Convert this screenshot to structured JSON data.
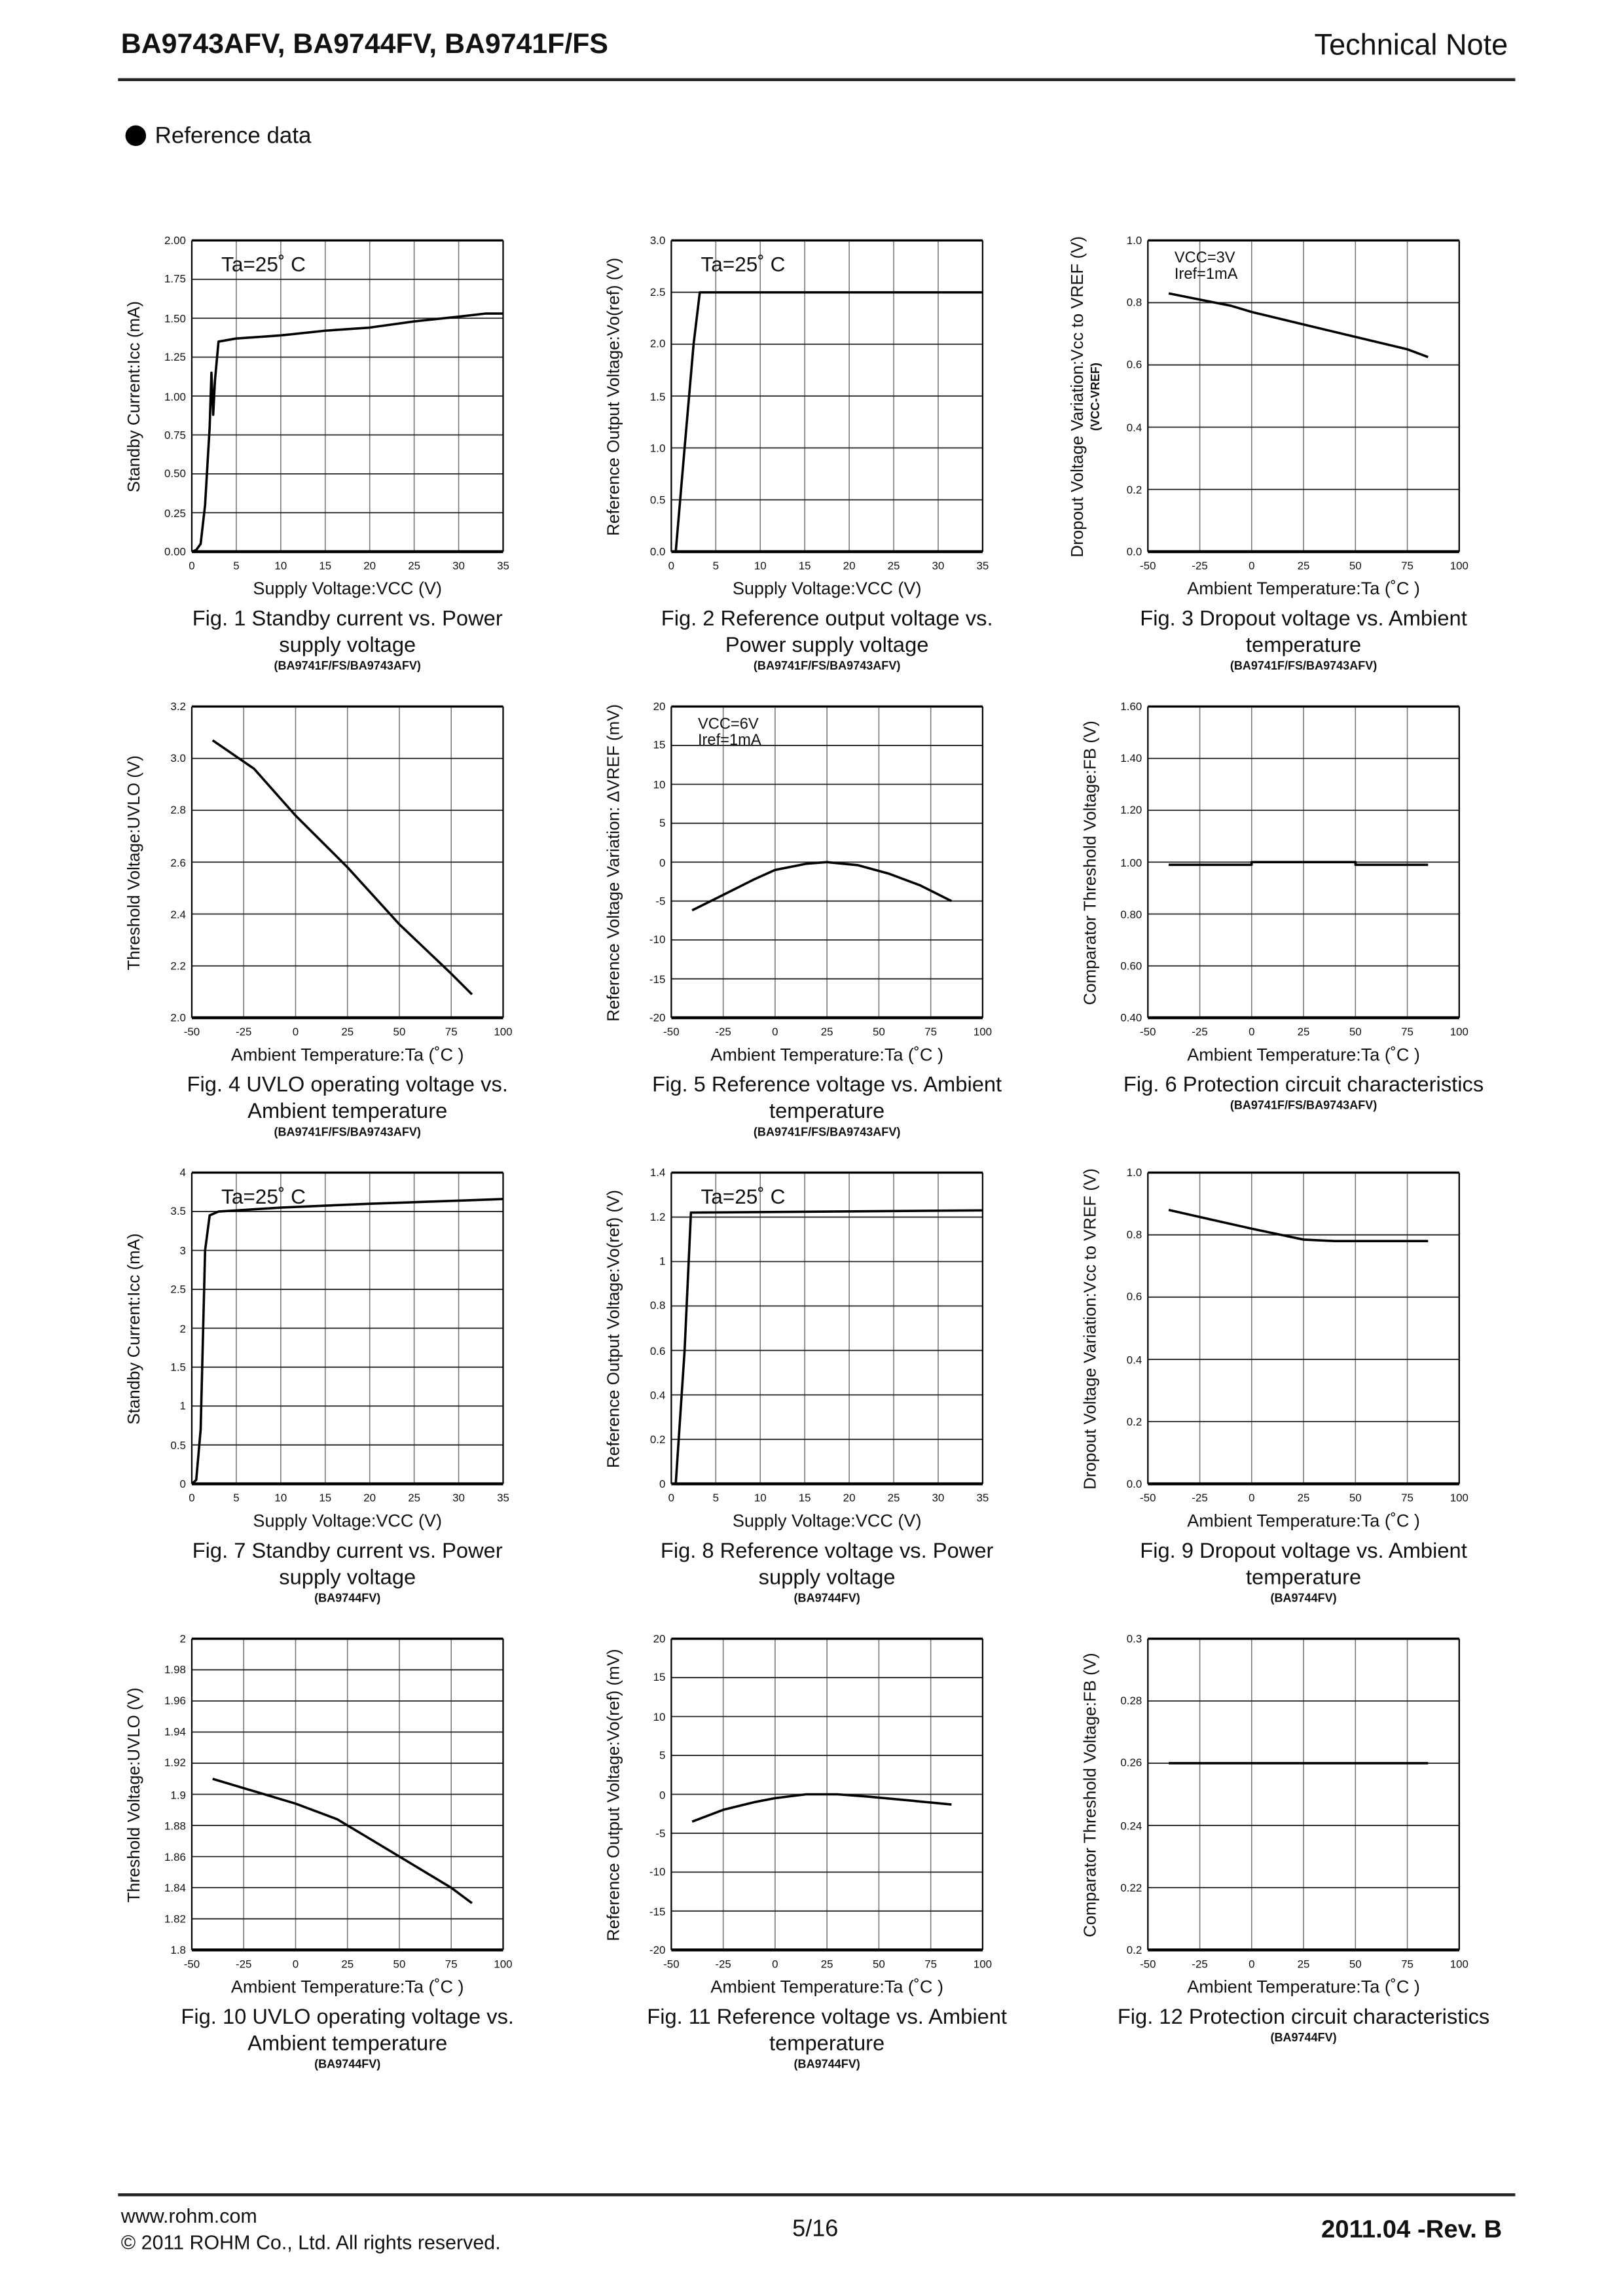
{
  "header": {
    "title": "BA9743AFV, BA9744FV, BA9741F/FS",
    "doc_type": "Technical Note"
  },
  "section": {
    "title": "Reference data"
  },
  "footer": {
    "url": "www.rohm.com",
    "copyright": "© 2011  ROHM Co., Ltd. All rights reserved.",
    "page": "5/16",
    "revision": "2011.04 -Rev. B"
  },
  "chart_data": [
    {
      "type": "line",
      "caption": [
        "Fig. 1  Standby current vs. Power",
        "supply voltage"
      ],
      "model": "(BA9741F/FS/BA9743AFV)",
      "xlabel": "Supply Voltage:VCC (V)",
      "ylabel": "Standby Current:Icc (mA)",
      "xlim": [
        0,
        35
      ],
      "ylim": [
        0,
        2
      ],
      "x_ticks": [
        "0",
        "5",
        "10",
        "15",
        "20",
        "25",
        "30",
        "35"
      ],
      "y_ticks": [
        "0.00",
        "0.25",
        "0.50",
        "0.75",
        "1.00",
        "1.25",
        "1.50",
        "1.75",
        "2.00"
      ],
      "annotation": [
        "Ta=25˚ C"
      ],
      "grid": true,
      "series": [
        {
          "name": "Icc",
          "x": [
            0,
            0.5,
            1,
            1.5,
            2,
            2.2,
            2.4,
            2.6,
            3,
            5,
            10,
            15,
            20,
            25,
            30,
            33,
            35
          ],
          "y": [
            0,
            0.01,
            0.05,
            0.3,
            0.8,
            1.15,
            0.88,
            1.1,
            1.35,
            1.37,
            1.39,
            1.42,
            1.44,
            1.48,
            1.51,
            1.53,
            1.53
          ]
        }
      ]
    },
    {
      "type": "line",
      "caption": [
        "Fig. 2  Reference output voltage vs.",
        "Power supply voltage"
      ],
      "model": "(BA9741F/FS/BA9743AFV)",
      "xlabel": "Supply Voltage:VCC (V)",
      "ylabel": "Reference Output Voltage:Vo(ref) (V)",
      "xlim": [
        0,
        35
      ],
      "ylim": [
        0,
        3
      ],
      "x_ticks": [
        "0",
        "5",
        "10",
        "15",
        "20",
        "25",
        "30",
        "35"
      ],
      "y_ticks": [
        "0.0",
        "0.5",
        "1.0",
        "1.5",
        "2.0",
        "2.5",
        "3.0"
      ],
      "annotation": [
        "Ta=25˚ C"
      ],
      "grid": true,
      "series": [
        {
          "name": "Vo(ref)",
          "x": [
            0.5,
            1.5,
            2.5,
            3.2,
            35
          ],
          "y": [
            0,
            1.0,
            2.0,
            2.5,
            2.5
          ]
        }
      ]
    },
    {
      "type": "line",
      "caption": [
        "Fig. 3  Dropout voltage vs. Ambient",
        "temperature"
      ],
      "model": "(BA9741F/FS/BA9743AFV)",
      "xlabel": "Ambient Temperature:Ta (˚C )",
      "ylabel": "Dropout Voltage Variation:Vcc to VREF (V)",
      "ylabel2": "(VCC-VREF)",
      "xlim": [
        -50,
        100
      ],
      "ylim": [
        0,
        1
      ],
      "x_ticks": [
        "-50",
        "-25",
        "0",
        "25",
        "50",
        "75",
        "100"
      ],
      "y_ticks": [
        "0.0",
        "0.2",
        "0.4",
        "0.6",
        "0.8",
        "1.0"
      ],
      "annotation": [
        "VCC=3V",
        "Iref=1mA"
      ],
      "grid": true,
      "series": [
        {
          "name": "VCC-VREF",
          "x": [
            -40,
            -25,
            -10,
            0,
            25,
            50,
            75,
            85
          ],
          "y": [
            0.83,
            0.81,
            0.79,
            0.77,
            0.73,
            0.69,
            0.65,
            0.625
          ]
        }
      ]
    },
    {
      "type": "line",
      "caption": [
        "Fig. 4  UVLO operating voltage vs.",
        "Ambient temperature"
      ],
      "model": "(BA9741F/FS/BA9743AFV)",
      "xlabel": "Ambient Temperature:Ta (˚C )",
      "ylabel": "Threshold Voltage:UVLO (V)",
      "xlim": [
        -50,
        100
      ],
      "ylim": [
        2.0,
        3.2
      ],
      "x_ticks": [
        "-50",
        "-25",
        "0",
        "25",
        "50",
        "75",
        "100"
      ],
      "y_ticks": [
        "2.0",
        "2.2",
        "2.4",
        "2.6",
        "2.8",
        "3.0",
        "3.2"
      ],
      "annotation": [],
      "grid": true,
      "series": [
        {
          "name": "UVLO",
          "x": [
            -40,
            -20,
            0,
            25,
            50,
            75,
            85
          ],
          "y": [
            3.07,
            2.96,
            2.78,
            2.58,
            2.36,
            2.17,
            2.09
          ]
        }
      ]
    },
    {
      "type": "line",
      "caption": [
        "Fig. 5  Reference voltage vs. Ambient",
        "temperature"
      ],
      "model": "(BA9741F/FS/BA9743AFV)",
      "xlabel": "Ambient Temperature:Ta (˚C )",
      "ylabel": "Reference Voltage Variation: ΔVREF (mV)",
      "xlim": [
        -50,
        100
      ],
      "ylim": [
        -20,
        20
      ],
      "x_ticks": [
        "-50",
        "-25",
        "0",
        "25",
        "50",
        "75",
        "100"
      ],
      "y_ticks": [
        "-20",
        "-15",
        "-10",
        "-5",
        "0",
        "5",
        "10",
        "15",
        "20"
      ],
      "annotation": [
        "VCC=6V",
        "Iref=1mA"
      ],
      "grid": true,
      "series": [
        {
          "name": "ΔVREF",
          "x": [
            -40,
            -25,
            -10,
            0,
            15,
            25,
            40,
            55,
            70,
            85
          ],
          "y": [
            -6.2,
            -4.2,
            -2.2,
            -1,
            -0.2,
            0,
            -0.4,
            -1.5,
            -3,
            -5
          ]
        }
      ]
    },
    {
      "type": "line",
      "caption": [
        "Fig. 6  Protection circuit characteristics"
      ],
      "model": "(BA9741F/FS/BA9743AFV)",
      "xlabel": "Ambient Temperature:Ta (˚C )",
      "ylabel": "Comparator Threshold Voltage:FB (V)",
      "xlim": [
        -50,
        100
      ],
      "ylim": [
        0.4,
        1.6
      ],
      "x_ticks": [
        "-50",
        "-25",
        "0",
        "25",
        "50",
        "75",
        "100"
      ],
      "y_ticks": [
        "0.40",
        "0.60",
        "0.80",
        "1.00",
        "1.20",
        "1.40",
        "1.60"
      ],
      "annotation": [],
      "grid": true,
      "series": [
        {
          "name": "FB",
          "x": [
            -40,
            0,
            0,
            50,
            50,
            85
          ],
          "y": [
            0.99,
            0.99,
            1.0,
            1.0,
            0.99,
            0.99
          ]
        }
      ]
    },
    {
      "type": "line",
      "caption": [
        "Fig. 7  Standby current vs. Power",
        "supply voltage"
      ],
      "model": "(BA9744FV)",
      "xlabel": "Supply Voltage:VCC (V)",
      "ylabel": "Standby Current:Icc (mA)",
      "xlim": [
        0,
        35
      ],
      "ylim": [
        0,
        4
      ],
      "x_ticks": [
        "0",
        "5",
        "10",
        "15",
        "20",
        "25",
        "30",
        "35"
      ],
      "y_ticks": [
        "0",
        "0.5",
        "1",
        "1.5",
        "2",
        "2.5",
        "3",
        "3.5",
        "4"
      ],
      "annotation": [
        "Ta=25˚ C"
      ],
      "grid": true,
      "series": [
        {
          "name": "Icc",
          "x": [
            0,
            0.5,
            1,
            1.5,
            2,
            3,
            10,
            20,
            30,
            35
          ],
          "y": [
            0,
            0.05,
            0.7,
            3.0,
            3.45,
            3.5,
            3.55,
            3.6,
            3.64,
            3.66
          ]
        }
      ]
    },
    {
      "type": "line",
      "caption": [
        "Fig. 8  Reference voltage vs. Power",
        "supply voltage"
      ],
      "model": "(BA9744FV)",
      "xlabel": "Supply Voltage:VCC (V)",
      "ylabel": "Reference Output Voltage:Vo(ref) (V)",
      "xlim": [
        0,
        35
      ],
      "ylim": [
        0,
        1.4
      ],
      "x_ticks": [
        "0",
        "5",
        "10",
        "15",
        "20",
        "25",
        "30",
        "35"
      ],
      "y_ticks": [
        "0",
        "0.2",
        "0.4",
        "0.6",
        "0.8",
        "1",
        "1.2",
        "1.4"
      ],
      "annotation": [
        "Ta=25˚ C"
      ],
      "grid": true,
      "series": [
        {
          "name": "Vo(ref)",
          "x": [
            0.5,
            1.5,
            2.2,
            35
          ],
          "y": [
            0,
            0.6,
            1.22,
            1.23
          ]
        }
      ]
    },
    {
      "type": "line",
      "caption": [
        "Fig. 9  Dropout voltage vs. Ambient",
        "temperature"
      ],
      "model": "(BA9744FV)",
      "xlabel": "Ambient Temperature:Ta (˚C )",
      "ylabel": "Dropout Voltage Variation:Vcc to VREF (V)",
      "xlim": [
        -50,
        100
      ],
      "ylim": [
        0,
        1
      ],
      "x_ticks": [
        "-50",
        "-25",
        "0",
        "25",
        "50",
        "75",
        "100"
      ],
      "y_ticks": [
        "0.0",
        "0.2",
        "0.4",
        "0.6",
        "0.8",
        "1.0"
      ],
      "annotation": [],
      "grid": true,
      "series": [
        {
          "name": "VCC-VREF",
          "x": [
            -40,
            -20,
            0,
            25,
            40,
            85
          ],
          "y": [
            0.88,
            0.85,
            0.82,
            0.785,
            0.78,
            0.78
          ]
        }
      ]
    },
    {
      "type": "line",
      "caption": [
        "Fig. 10  UVLO operating voltage vs.",
        "Ambient temperature"
      ],
      "model": "(BA9744FV)",
      "xlabel": "Ambient Temperature:Ta (˚C )",
      "ylabel": "Threshold Voltage:UVLO (V)",
      "xlim": [
        -50,
        100
      ],
      "ylim": [
        1.8,
        2.0
      ],
      "x_ticks": [
        "-50",
        "-25",
        "0",
        "25",
        "50",
        "75",
        "100"
      ],
      "y_ticks": [
        "1.8",
        "1.82",
        "1.84",
        "1.86",
        "1.88",
        "1.9",
        "1.92",
        "1.94",
        "1.96",
        "1.98",
        "2"
      ],
      "annotation": [],
      "grid": true,
      "series": [
        {
          "name": "UVLO",
          "x": [
            -40,
            -20,
            0,
            20,
            35,
            50,
            75,
            85
          ],
          "y": [
            1.91,
            1.902,
            1.894,
            1.884,
            1.872,
            1.86,
            1.84,
            1.83
          ]
        }
      ]
    },
    {
      "type": "line",
      "caption": [
        "Fig. 11  Reference voltage vs. Ambient",
        "temperature"
      ],
      "model": "(BA9744FV)",
      "xlabel": "Ambient Temperature:Ta (˚C )",
      "ylabel": "Reference Output Voltage:Vo(ref) (mV)",
      "xlim": [
        -50,
        100
      ],
      "ylim": [
        -20,
        20
      ],
      "x_ticks": [
        "-50",
        "-25",
        "0",
        "25",
        "50",
        "75",
        "100"
      ],
      "y_ticks": [
        "-20",
        "-15",
        "-10",
        "-5",
        "0",
        "5",
        "10",
        "15",
        "20"
      ],
      "annotation": [],
      "grid": true,
      "series": [
        {
          "name": "Vo(ref)",
          "x": [
            -40,
            -25,
            -10,
            0,
            15,
            30,
            45,
            65,
            85
          ],
          "y": [
            -3.5,
            -2,
            -1,
            -0.5,
            0,
            0,
            -0.3,
            -0.8,
            -1.3
          ]
        }
      ]
    },
    {
      "type": "line",
      "caption": [
        "Fig. 12  Protection circuit characteristics"
      ],
      "model": "(BA9744FV)",
      "xlabel": "Ambient Temperature:Ta (˚C )",
      "ylabel": "Comparator Threshold Voltage:FB (V)",
      "xlim": [
        -50,
        100
      ],
      "ylim": [
        0.2,
        0.3
      ],
      "x_ticks": [
        "-50",
        "-25",
        "0",
        "25",
        "50",
        "75",
        "100"
      ],
      "y_ticks": [
        "0.2",
        "0.22",
        "0.24",
        "0.26",
        "0.28",
        "0.3"
      ],
      "annotation": [],
      "grid": true,
      "series": [
        {
          "name": "FB",
          "x": [
            -40,
            85
          ],
          "y": [
            0.26,
            0.26
          ]
        }
      ]
    }
  ]
}
